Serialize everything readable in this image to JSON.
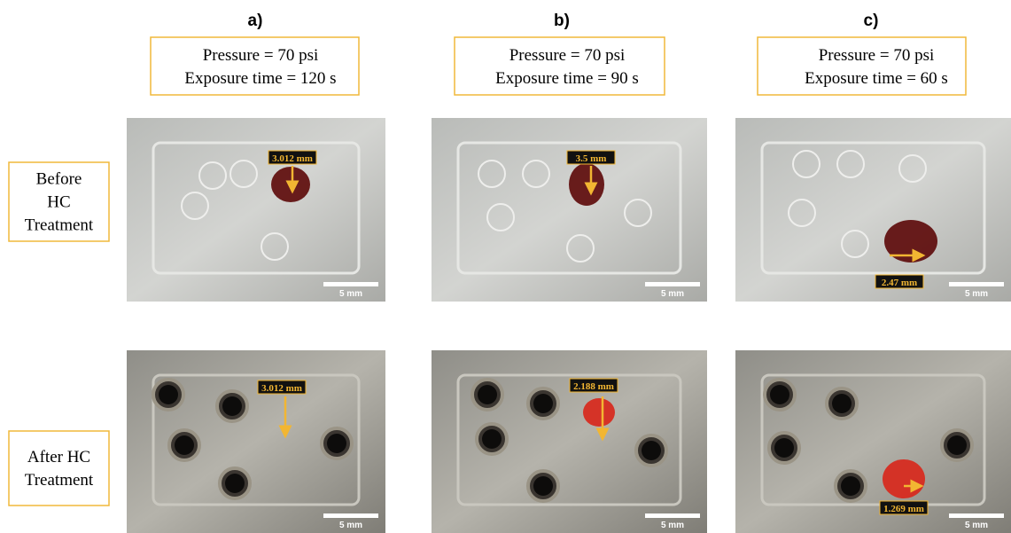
{
  "columns": [
    {
      "label": "a)",
      "pressure": "Pressure = 70 psi",
      "exposure": "Exposure time = 120 s",
      "before": {
        "measurement": "3.012 mm",
        "scale": "5 mm"
      },
      "after": {
        "measurement": "3.012 mm",
        "scale": "5 mm"
      }
    },
    {
      "label": "b)",
      "pressure": "Pressure = 70 psi",
      "exposure": "Exposure time = 90 s",
      "before": {
        "measurement": "3.5 mm",
        "scale": "5 mm"
      },
      "after": {
        "measurement": "2.188 mm",
        "scale": "5 mm"
      }
    },
    {
      "label": "c)",
      "pressure": "Pressure = 70 psi",
      "exposure": "Exposure time = 60 s",
      "before": {
        "measurement": "2.47 mm",
        "scale": "5 mm"
      },
      "after": {
        "measurement": "1.269 mm",
        "scale": "5 mm"
      }
    }
  ],
  "rows": {
    "before": [
      "Before",
      "HC",
      "Treatment"
    ],
    "after": [
      "After HC",
      "Treatment"
    ]
  }
}
